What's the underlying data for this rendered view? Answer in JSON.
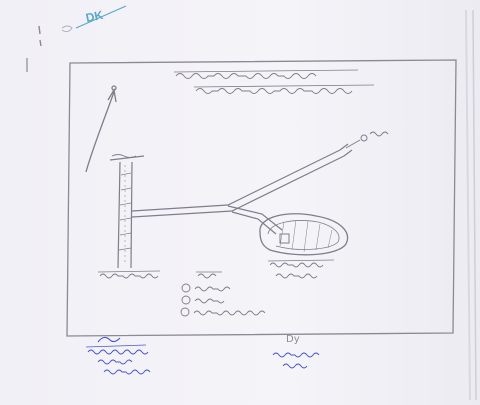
{
  "corner_mark": {
    "text": "DK",
    "color": "#5aa8c8"
  },
  "signature_right": {
    "initials": "Dy"
  },
  "colors": {
    "pencil": "#8a8a96",
    "pencil_dark": "#6e6e7c",
    "stamp_ink": "#4a55c8"
  }
}
